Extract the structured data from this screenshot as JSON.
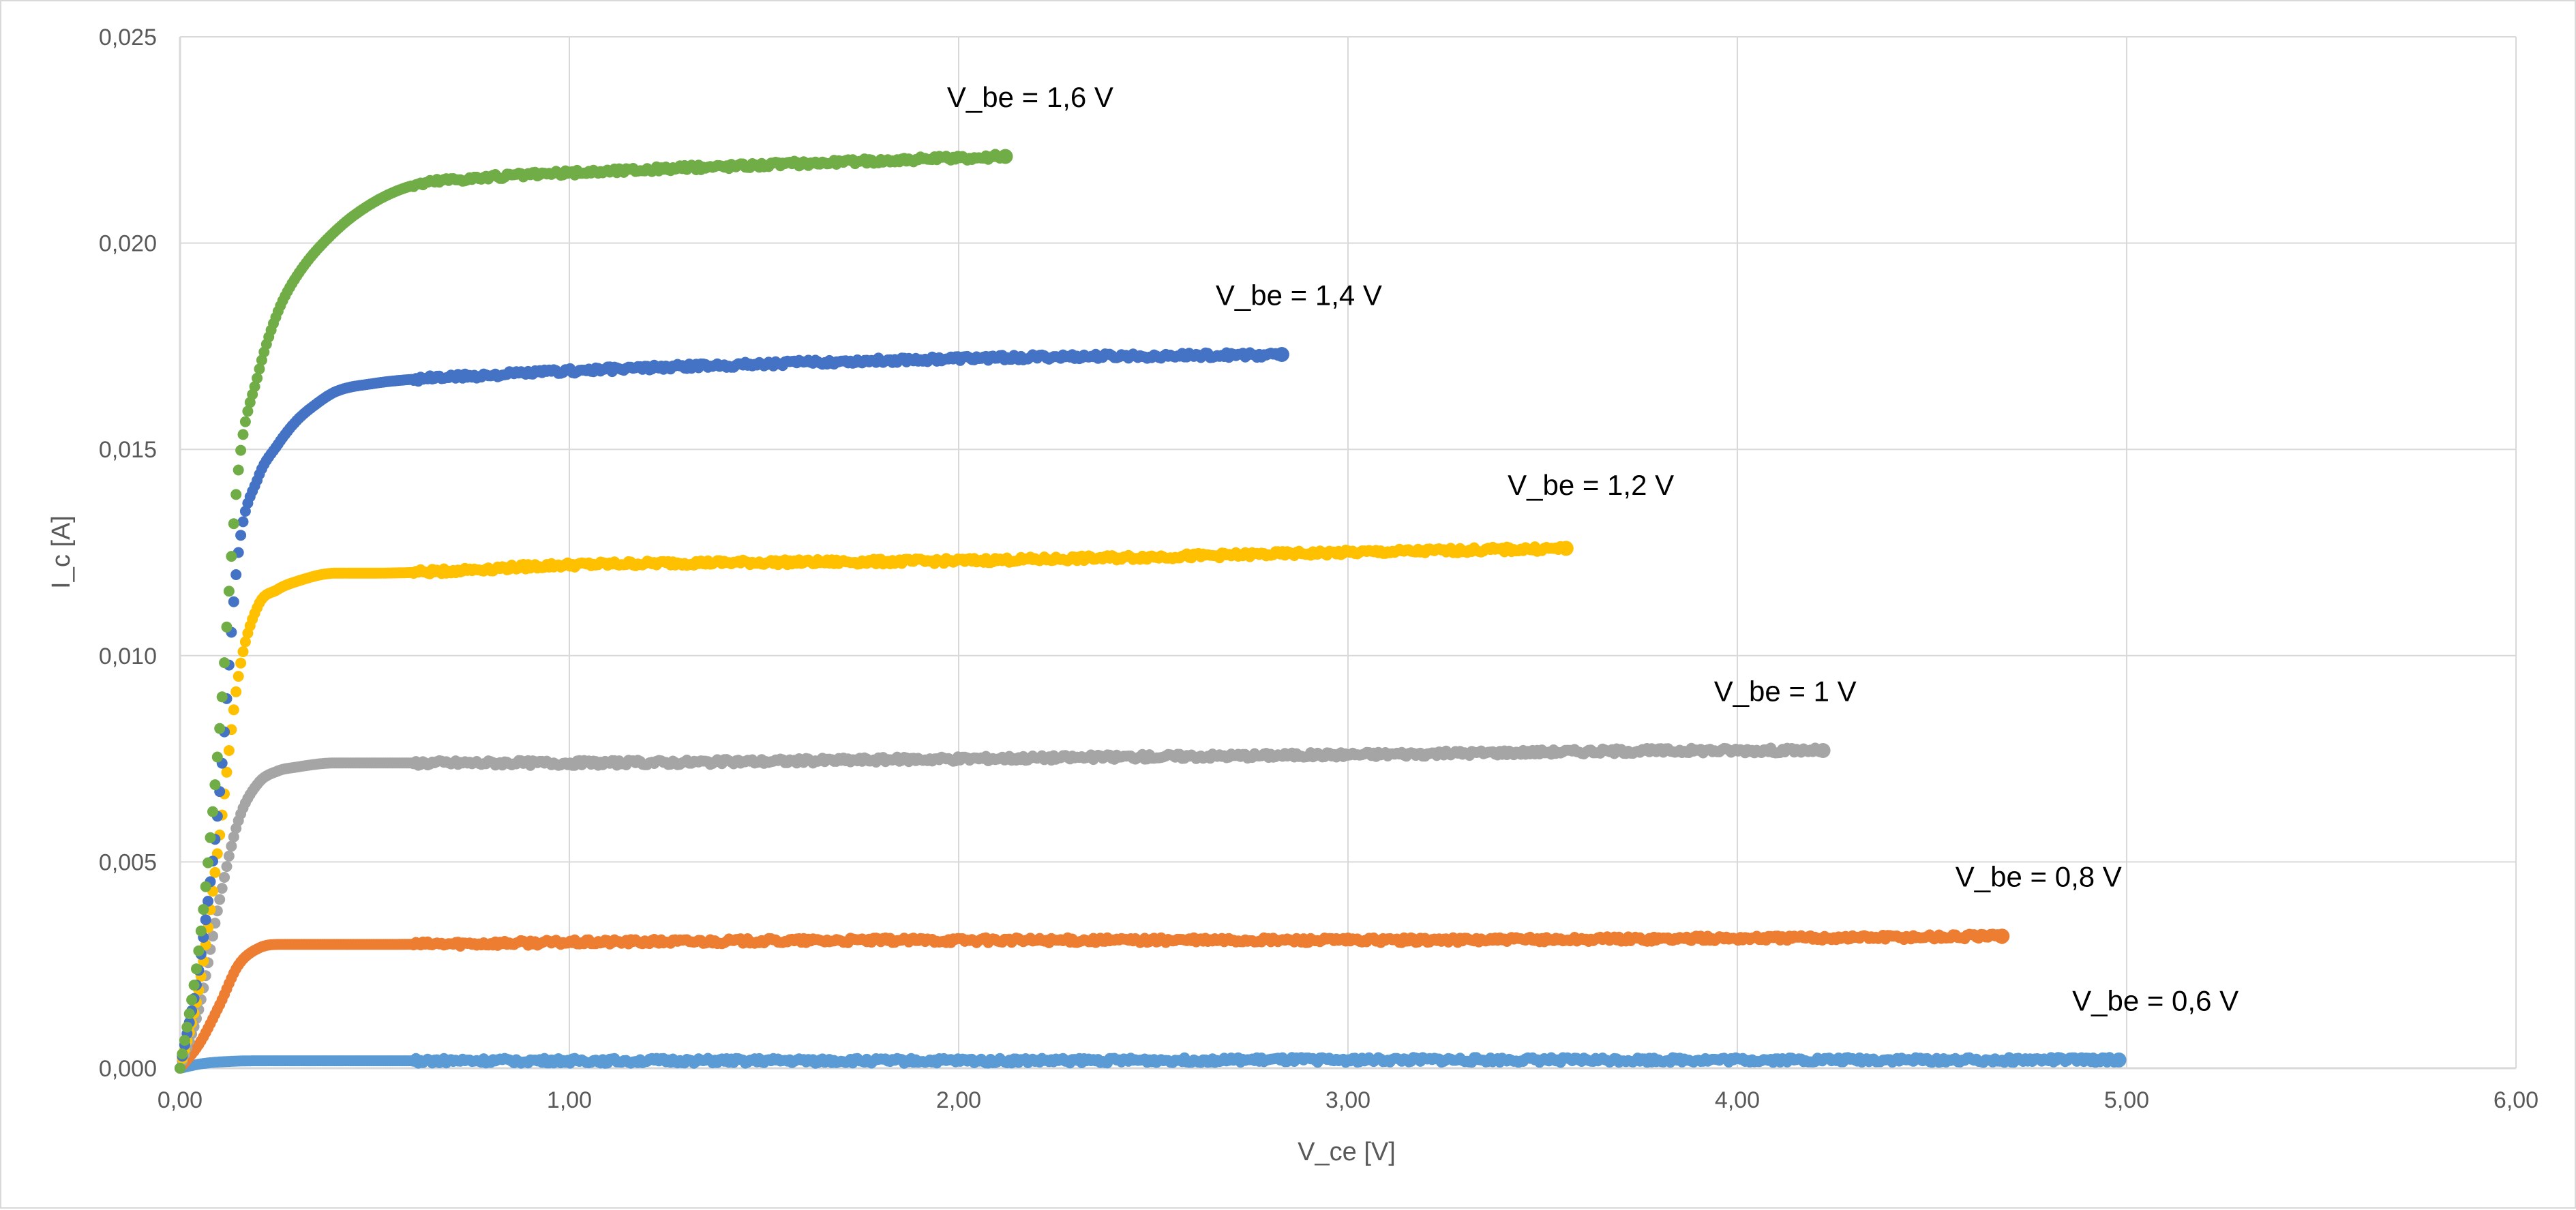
{
  "chart_data": {
    "type": "scatter",
    "title": "",
    "xlabel": "V_ce [V]",
    "ylabel": "I_c [A]",
    "xlim": [
      0,
      6
    ],
    "ylim": [
      0,
      0.025
    ],
    "x_ticks": [
      0,
      1,
      2,
      3,
      4,
      5,
      6
    ],
    "x_tick_labels": [
      "0,00",
      "1,00",
      "2,00",
      "3,00",
      "4,00",
      "5,00",
      "6,00"
    ],
    "y_ticks": [
      0,
      0.005,
      0.01,
      0.015,
      0.02,
      0.025
    ],
    "y_tick_labels": [
      "0,000",
      "0,005",
      "0,010",
      "0,015",
      "0,020",
      "0,025"
    ],
    "grid": true,
    "legend": "none (series labeled inline)",
    "series": [
      {
        "name": "V_be = 0,6 V",
        "color": "#5B9BD5",
        "label_text": "V_be = 0,6 V",
        "x": [
          0,
          0.05,
          0.1,
          0.2,
          0.5,
          1.0,
          2.0,
          3.0,
          4.0,
          4.98
        ],
        "y": [
          0,
          0.0001,
          0.00015,
          0.00018,
          0.00018,
          0.00018,
          0.00018,
          0.0002,
          0.0002,
          0.0002
        ]
      },
      {
        "name": "V_be = 0,8 V",
        "color": "#ED7D31",
        "label_text": "V_be = 0,8 V",
        "x": [
          0,
          0.05,
          0.1,
          0.15,
          0.2,
          0.25,
          0.3,
          0.5,
          1.0,
          2.0,
          3.0,
          4.0,
          4.68
        ],
        "y": [
          0,
          0.0006,
          0.0015,
          0.0025,
          0.0029,
          0.003,
          0.003,
          0.003,
          0.00305,
          0.0031,
          0.0031,
          0.00315,
          0.0032
        ]
      },
      {
        "name": "V_be = 1 V",
        "color": "#A5A5A5",
        "label_text": "V_be = 1 V",
        "x": [
          0,
          0.05,
          0.1,
          0.15,
          0.2,
          0.25,
          0.3,
          0.4,
          0.5,
          1.0,
          2.0,
          3.0,
          4.0,
          4.22
        ],
        "y": [
          0,
          0.0015,
          0.004,
          0.006,
          0.0069,
          0.0072,
          0.0073,
          0.0074,
          0.0074,
          0.0074,
          0.0075,
          0.0076,
          0.0077,
          0.0077
        ]
      },
      {
        "name": "V_be = 1,2 V",
        "color": "#FFC000",
        "label_text": "V_be = 1,2 V",
        "x": [
          0,
          0.05,
          0.1,
          0.15,
          0.2,
          0.25,
          0.3,
          0.4,
          0.5,
          1.0,
          2.0,
          3.0,
          3.56
        ],
        "y": [
          0,
          0.002,
          0.0055,
          0.0095,
          0.0112,
          0.0116,
          0.0118,
          0.012,
          0.012,
          0.0122,
          0.0123,
          0.0125,
          0.0126
        ]
      },
      {
        "name": "V_be = 1,4 V",
        "color": "#4472C4",
        "label_text": "V_be = 1,4 V",
        "x": [
          0,
          0.05,
          0.1,
          0.15,
          0.2,
          0.25,
          0.3,
          0.35,
          0.4,
          0.5,
          0.6,
          0.8,
          1.0,
          2.0,
          2.83
        ],
        "y": [
          0,
          0.0025,
          0.0065,
          0.0125,
          0.0143,
          0.0151,
          0.0157,
          0.0161,
          0.0164,
          0.0166,
          0.0167,
          0.0168,
          0.0169,
          0.0172,
          0.0173
        ]
      },
      {
        "name": "V_be = 1,6 V",
        "color": "#70AD47",
        "label_text": "V_be = 1,6 V",
        "x": [
          0,
          0.05,
          0.1,
          0.15,
          0.2,
          0.25,
          0.3,
          0.4,
          0.5,
          0.6,
          0.8,
          1.0,
          1.5,
          2.12
        ],
        "y": [
          0,
          0.003,
          0.008,
          0.0145,
          0.0168,
          0.0183,
          0.0192,
          0.0203,
          0.021,
          0.0214,
          0.0216,
          0.0217,
          0.0219,
          0.0221
        ]
      }
    ]
  }
}
